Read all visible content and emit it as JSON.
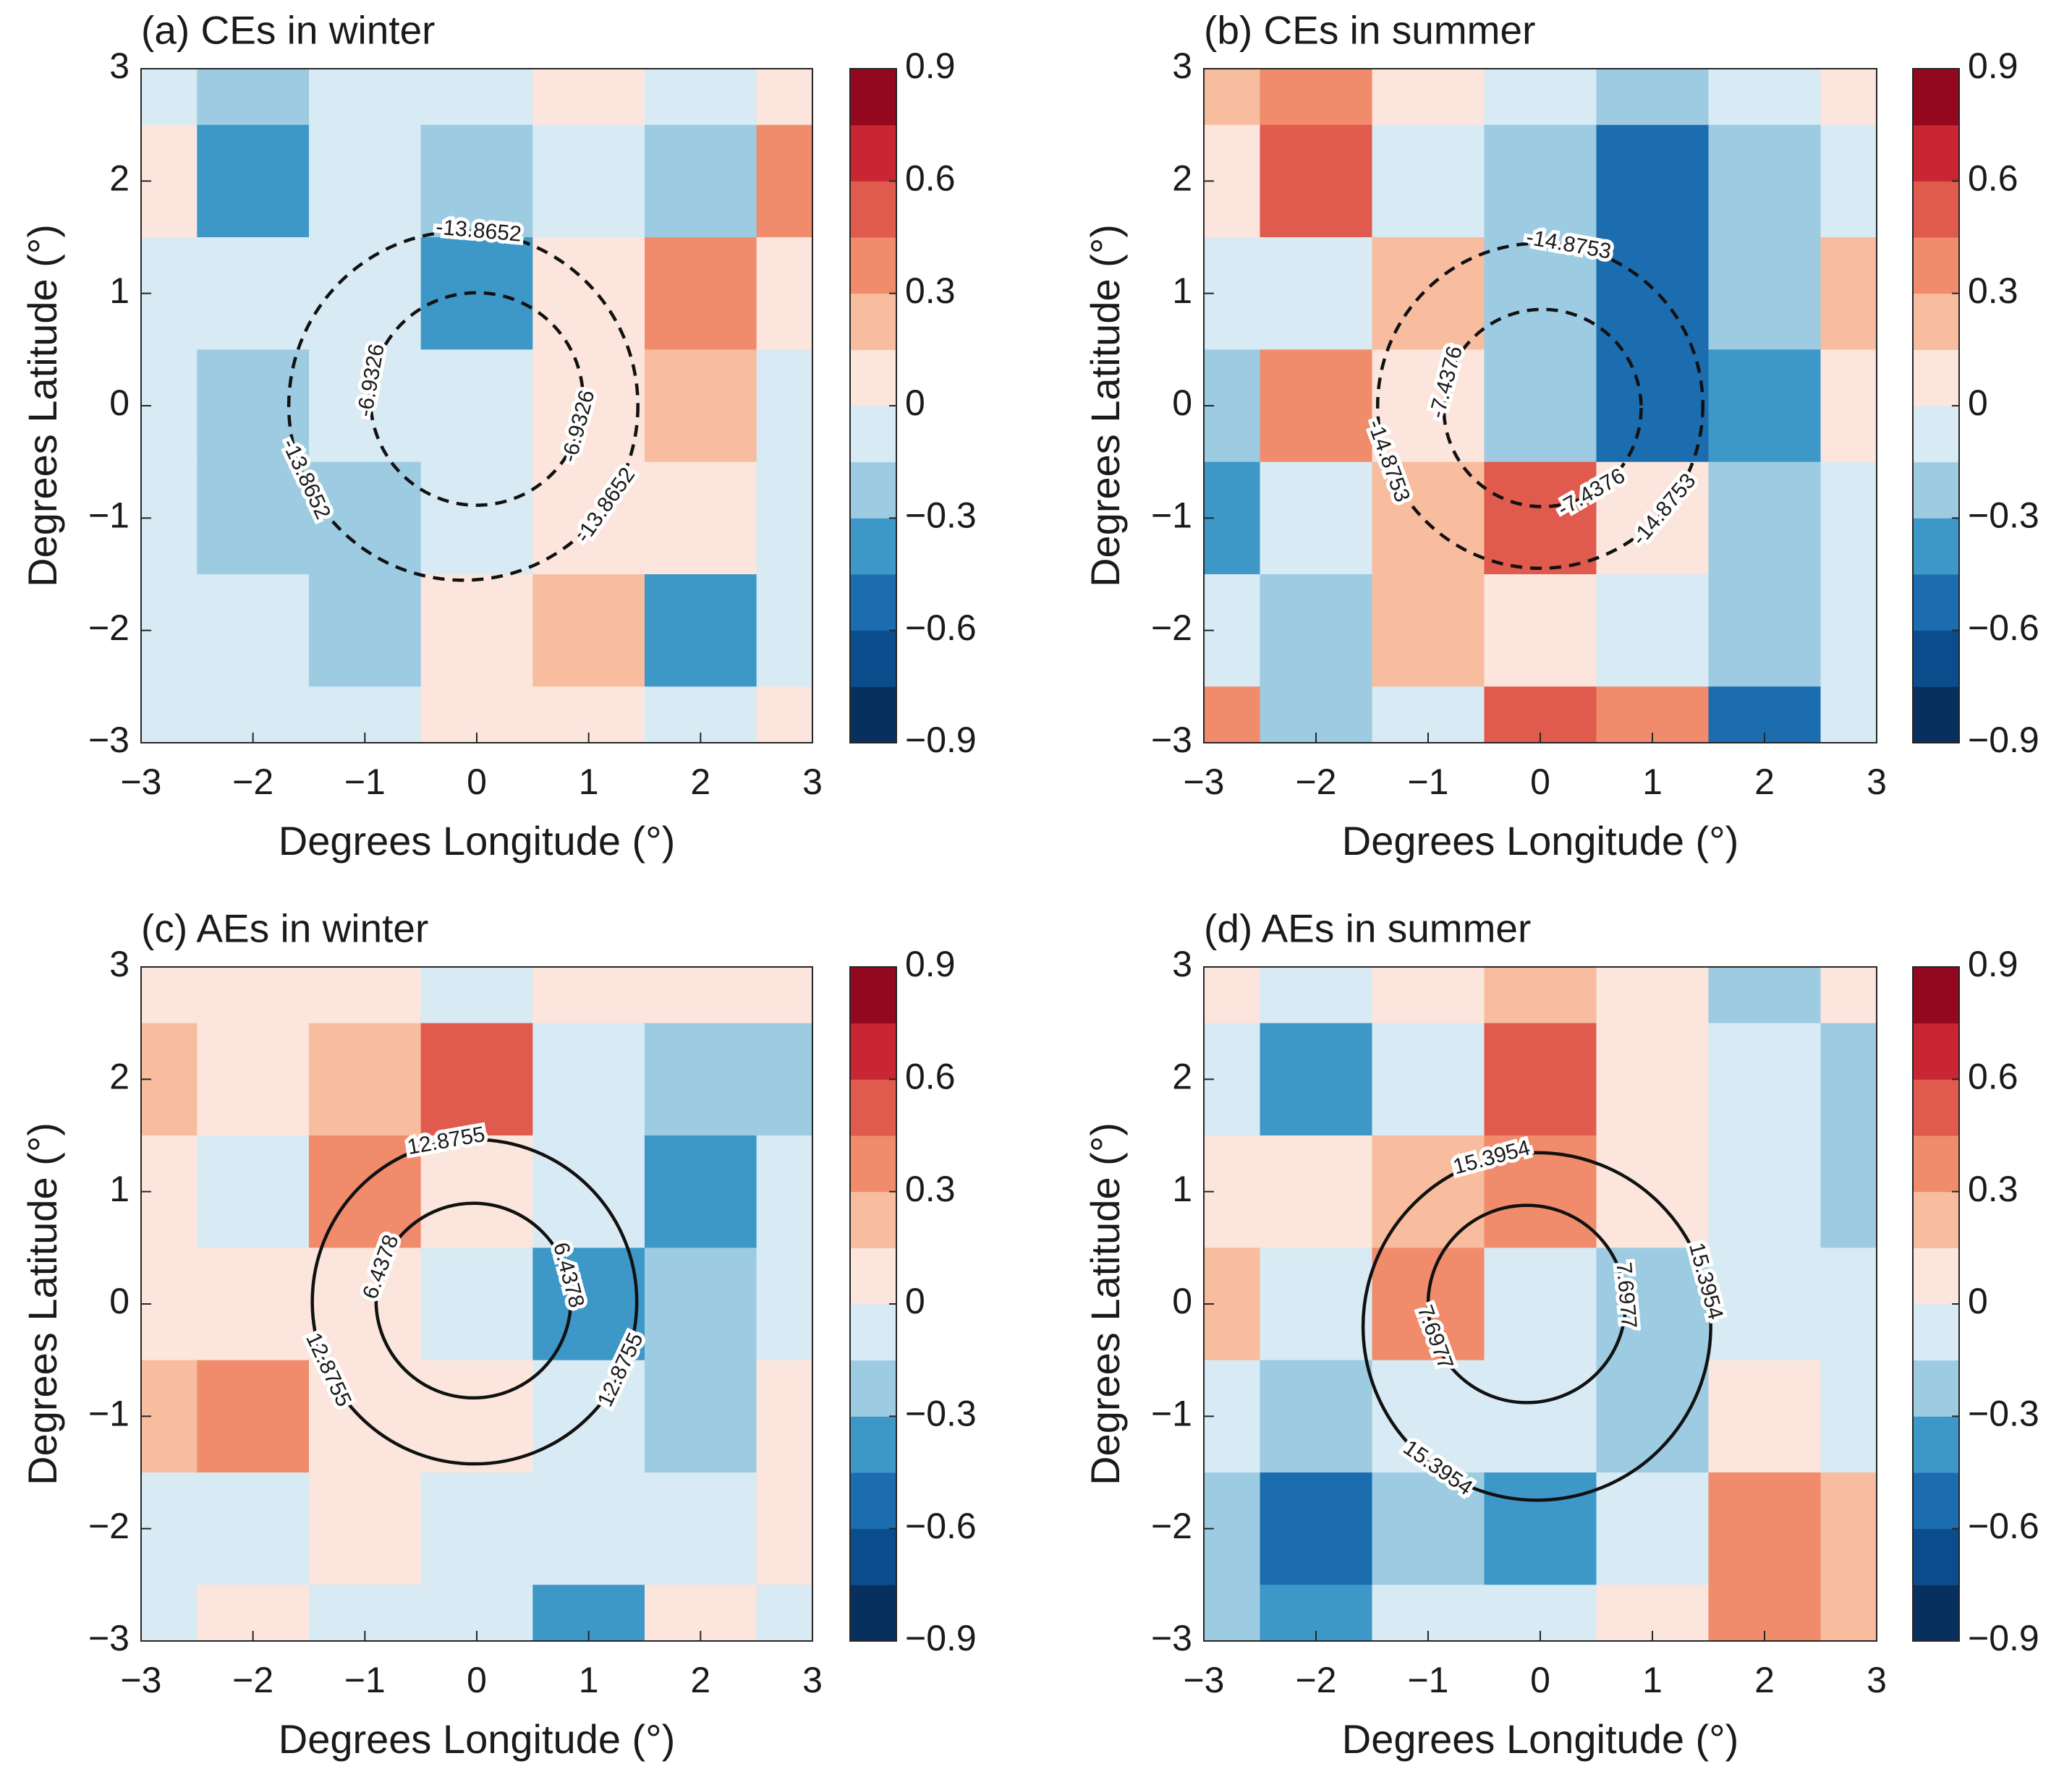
{
  "chart_data": [
    {
      "type": "contour",
      "title": "(a) CEs in winter",
      "xlabel": "Degrees Longitude (°)",
      "ylabel": "Degrees Latitude (°)",
      "x": [
        -3,
        -2,
        -1,
        0,
        1,
        2,
        3
      ],
      "y": [
        3,
        2,
        1,
        0,
        -1,
        -2,
        -3
      ],
      "z": [
        [
          -0.15,
          -0.3,
          -0.15,
          -0.15,
          0.05,
          -0.15,
          0.1
        ],
        [
          0.1,
          -0.4,
          -0.15,
          -0.3,
          -0.15,
          -0.3,
          0.4
        ],
        [
          -0.15,
          -0.15,
          -0.15,
          -0.4,
          0.1,
          0.3,
          0.1
        ],
        [
          -0.15,
          -0.3,
          -0.15,
          -0.15,
          0.1,
          0.2,
          -0.15
        ],
        [
          -0.15,
          -0.3,
          -0.3,
          -0.15,
          0.1,
          0,
          -0.15
        ],
        [
          -0.15,
          -0.15,
          -0.3,
          0.05,
          0.2,
          -0.45,
          -0.15
        ],
        [
          -0.15,
          -0.15,
          -0.15,
          0.1,
          0.1,
          -0.15,
          0.05
        ]
      ],
      "xlim": [
        -3,
        3
      ],
      "ylim": [
        -3,
        3
      ],
      "xticks": [
        {
          "value": -3,
          "label": "−3"
        },
        {
          "value": -2,
          "label": "−2"
        },
        {
          "value": -1,
          "label": "−1"
        },
        0,
        1,
        2,
        3
      ],
      "yticks": [
        {
          "value": -3,
          "label": "−3"
        },
        {
          "value": -2,
          "label": "−2"
        },
        {
          "value": -1,
          "label": "−1"
        },
        0,
        1,
        2,
        3
      ],
      "colorbar": {
        "lim": [
          -0.9,
          0.9
        ],
        "colors": [
          "#08305e",
          "#0b4c8d",
          "#1b6db0",
          "#3d98c8",
          "#9ccbe2",
          "#d8eaf3",
          "#fbe5dc",
          "#f7bd9e",
          "#f08c6c",
          "#e05a4e",
          "#c82633",
          "#93071f"
        ],
        "ticks": [
          {
            "value": -0.9,
            "label": "−0.9"
          },
          {
            "value": -0.6,
            "label": "−0.6"
          },
          {
            "value": -0.3,
            "label": "−0.3"
          },
          0,
          0.3,
          0.6,
          0.9
        ]
      },
      "contours": [
        {
          "level": -13.8652,
          "cx": -0.12,
          "cy": 0,
          "r": 1.56,
          "style": "dashed"
        },
        {
          "level": -6.9326,
          "cx": 0,
          "cy": 0.06,
          "r": 0.95,
          "style": "dashed"
        }
      ]
    },
    {
      "type": "contour",
      "title": "(b) CEs in summer",
      "xlabel": "Degrees Longitude (°)",
      "ylabel": "Degrees Latitude (°)",
      "x": [
        -3,
        -2,
        -1,
        0,
        1,
        2,
        3
      ],
      "y": [
        3,
        2,
        1,
        0,
        -1,
        -2,
        -3
      ],
      "z": [
        [
          0.15,
          0.4,
          0.1,
          -0.15,
          -0.3,
          -0.15,
          0.05
        ],
        [
          0.05,
          0.5,
          -0.15,
          -0.3,
          -0.5,
          -0.3,
          -0.15
        ],
        [
          -0.15,
          -0.15,
          0.2,
          -0.3,
          -0.5,
          -0.3,
          0.2
        ],
        [
          -0.3,
          0.3,
          0.1,
          -0.3,
          -0.5,
          -0.4,
          0.1
        ],
        [
          -0.4,
          -0.15,
          0.2,
          0.5,
          0.1,
          -0.3,
          -0.15
        ],
        [
          -0.15,
          -0.3,
          0.2,
          0.1,
          -0.15,
          -0.3,
          -0.15
        ],
        [
          0.3,
          -0.3,
          -0.15,
          0.5,
          0.3,
          -0.5,
          -0.15
        ]
      ],
      "xlim": [
        -3,
        3
      ],
      "ylim": [
        -3,
        3
      ],
      "xticks": [
        {
          "value": -3,
          "label": "−3"
        },
        {
          "value": -2,
          "label": "−2"
        },
        {
          "value": -1,
          "label": "−1"
        },
        0,
        1,
        2,
        3
      ],
      "yticks": [
        {
          "value": -3,
          "label": "−3"
        },
        {
          "value": -2,
          "label": "−2"
        },
        {
          "value": -1,
          "label": "−1"
        },
        0,
        1,
        2,
        3
      ],
      "colorbar": {
        "lim": [
          -0.9,
          0.9
        ],
        "colors": [
          "#08305e",
          "#0b4c8d",
          "#1b6db0",
          "#3d98c8",
          "#9ccbe2",
          "#d8eaf3",
          "#fbe5dc",
          "#f7bd9e",
          "#f08c6c",
          "#e05a4e",
          "#c82633",
          "#93071f"
        ],
        "ticks": [
          {
            "value": -0.9,
            "label": "−0.9"
          },
          {
            "value": -0.6,
            "label": "−0.6"
          },
          {
            "value": -0.3,
            "label": "−0.3"
          },
          0,
          0.3,
          0.6,
          0.9
        ]
      },
      "contours": [
        {
          "level": -14.8753,
          "cx": 0,
          "cy": 0,
          "r": 1.45,
          "style": "dashed"
        },
        {
          "level": -7.4376,
          "cx": 0.02,
          "cy": -0.02,
          "r": 0.88,
          "style": "dashed"
        }
      ]
    },
    {
      "type": "contour",
      "title": "(c) AEs in winter",
      "xlabel": "Degrees Longitude (°)",
      "ylabel": "Degrees Latitude (°)",
      "x": [
        -3,
        -2,
        -1,
        0,
        1,
        2,
        3
      ],
      "y": [
        3,
        2,
        1,
        0,
        -1,
        -2,
        -3
      ],
      "z": [
        [
          0.05,
          0.1,
          0.05,
          -0.15,
          0.05,
          0.1,
          0.05
        ],
        [
          0.2,
          0.1,
          0.2,
          0.45,
          -0.15,
          -0.3,
          -0.3
        ],
        [
          0.05,
          -0.15,
          0.3,
          0.1,
          -0.15,
          -0.45,
          -0.15
        ],
        [
          0.1,
          0.05,
          0.1,
          -0.15,
          -0.35,
          -0.3,
          -0.15
        ],
        [
          0.15,
          0.3,
          0.1,
          0.05,
          -0.15,
          -0.3,
          0.05
        ],
        [
          -0.15,
          -0.15,
          0.05,
          -0.15,
          -0.15,
          -0.15,
          0.05
        ],
        [
          -0.15,
          0.05,
          -0.15,
          -0.15,
          -0.4,
          0.05,
          -0.15
        ]
      ],
      "xlim": [
        -3,
        3
      ],
      "ylim": [
        -3,
        3
      ],
      "xticks": [
        {
          "value": -3,
          "label": "−3"
        },
        {
          "value": -2,
          "label": "−2"
        },
        {
          "value": -1,
          "label": "−1"
        },
        0,
        1,
        2,
        3
      ],
      "yticks": [
        {
          "value": -3,
          "label": "−3"
        },
        {
          "value": -2,
          "label": "−2"
        },
        {
          "value": -1,
          "label": "−1"
        },
        0,
        1,
        2,
        3
      ],
      "colorbar": {
        "lim": [
          -0.9,
          0.9
        ],
        "colors": [
          "#08305e",
          "#0b4c8d",
          "#1b6db0",
          "#3d98c8",
          "#9ccbe2",
          "#d8eaf3",
          "#fbe5dc",
          "#f7bd9e",
          "#f08c6c",
          "#e05a4e",
          "#c82633",
          "#93071f"
        ],
        "ticks": [
          {
            "value": -0.9,
            "label": "−0.9"
          },
          {
            "value": -0.6,
            "label": "−0.6"
          },
          {
            "value": -0.3,
            "label": "−0.3"
          },
          0,
          0.3,
          0.6,
          0.9
        ]
      },
      "contours": [
        {
          "level": 12.8755,
          "cx": -0.02,
          "cy": 0.02,
          "r": 1.45,
          "style": "solid"
        },
        {
          "level": 6.4378,
          "cx": -0.03,
          "cy": 0.03,
          "r": 0.87,
          "style": "solid"
        }
      ]
    },
    {
      "type": "contour",
      "title": "(d) AEs in summer",
      "xlabel": "Degrees Longitude (°)",
      "ylabel": "Degrees Latitude (°)",
      "x": [
        -3,
        -2,
        -1,
        0,
        1,
        2,
        3
      ],
      "y": [
        3,
        2,
        1,
        0,
        -1,
        -2,
        -3
      ],
      "z": [
        [
          0.05,
          -0.15,
          0.05,
          0.2,
          0.05,
          -0.3,
          0.05
        ],
        [
          -0.15,
          -0.4,
          -0.15,
          0.5,
          0.1,
          -0.15,
          -0.3
        ],
        [
          0.1,
          0.05,
          0.2,
          0.3,
          0.05,
          -0.15,
          -0.3
        ],
        [
          0.2,
          -0.15,
          0.3,
          -0.15,
          -0.3,
          -0.15,
          -0.15
        ],
        [
          -0.15,
          -0.3,
          -0.15,
          -0.15,
          -0.3,
          0.05,
          -0.15
        ],
        [
          -0.3,
          -0.5,
          -0.3,
          -0.45,
          -0.15,
          0.3,
          0.15
        ],
        [
          -0.3,
          -0.4,
          -0.15,
          -0.15,
          0.1,
          0.4,
          0.2
        ]
      ],
      "xlim": [
        -3,
        3
      ],
      "ylim": [
        -3,
        3
      ],
      "xticks": [
        {
          "value": -3,
          "label": "−3"
        },
        {
          "value": -2,
          "label": "−2"
        },
        {
          "value": -1,
          "label": "−1"
        },
        0,
        1,
        2,
        3
      ],
      "yticks": [
        {
          "value": -3,
          "label": "−3"
        },
        {
          "value": -2,
          "label": "−2"
        },
        {
          "value": -1,
          "label": "−1"
        },
        0,
        1,
        2,
        3
      ],
      "colorbar": {
        "lim": [
          -0.9,
          0.9
        ],
        "colors": [
          "#08305e",
          "#0b4c8d",
          "#1b6db0",
          "#3d98c8",
          "#9ccbe2",
          "#d8eaf3",
          "#fbe5dc",
          "#f7bd9e",
          "#f08c6c",
          "#e05a4e",
          "#c82633",
          "#93071f"
        ],
        "ticks": [
          {
            "value": -0.9,
            "label": "−0.9"
          },
          {
            "value": -0.6,
            "label": "−0.6"
          },
          {
            "value": -0.3,
            "label": "−0.3"
          },
          0,
          0.3,
          0.6,
          0.9
        ]
      },
      "contours": [
        {
          "level": 15.3954,
          "cx": -0.03,
          "cy": -0.2,
          "r": 1.55,
          "style": "solid"
        },
        {
          "level": 7.6977,
          "cx": -0.12,
          "cy": 0,
          "r": 0.88,
          "style": "solid"
        }
      ]
    }
  ]
}
